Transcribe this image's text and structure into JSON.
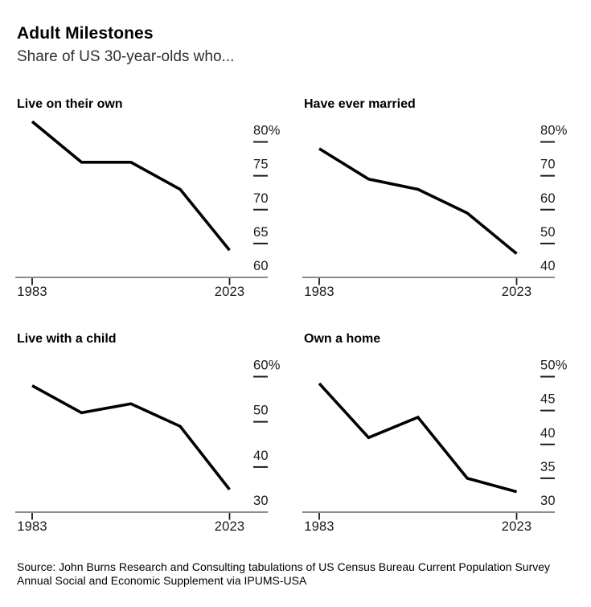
{
  "header": {
    "title": "Adult Milestones",
    "subtitle": "Share of US 30-year-olds who..."
  },
  "chart_data": [
    {
      "type": "line",
      "title": "Live on their own",
      "x": [
        1983,
        1993,
        2003,
        2013,
        2023
      ],
      "values": [
        83,
        77,
        77,
        73,
        64
      ],
      "x_tick_labels": [
        "1983",
        "2023"
      ],
      "y_ticks": [
        80,
        75,
        70,
        65
      ],
      "y_tick_labels": [
        "80%",
        "75",
        "70",
        "65"
      ],
      "y_axis_value": 60,
      "y_axis_label": "60",
      "ylim": [
        60,
        84
      ],
      "legend": "none",
      "grid": "off"
    },
    {
      "type": "line",
      "title": "Have ever married",
      "x": [
        1983,
        1993,
        2003,
        2013,
        2023
      ],
      "values": [
        78,
        69,
        66,
        59,
        47
      ],
      "x_tick_labels": [
        "1983",
        "2023"
      ],
      "y_ticks": [
        80,
        70,
        60,
        50
      ],
      "y_tick_labels": [
        "80%",
        "70",
        "60",
        "50"
      ],
      "y_axis_value": 40,
      "y_axis_label": "40",
      "ylim": [
        40,
        82
      ],
      "legend": "none",
      "grid": "off"
    },
    {
      "type": "line",
      "title": "Live with a child",
      "x": [
        1983,
        1993,
        2003,
        2013,
        2023
      ],
      "values": [
        58,
        52,
        54,
        49,
        35
      ],
      "x_tick_labels": [
        "1983",
        "2023"
      ],
      "y_ticks": [
        60,
        50,
        40
      ],
      "y_tick_labels": [
        "60%",
        "50",
        "40"
      ],
      "y_axis_value": 30,
      "y_axis_label": "30",
      "ylim": [
        30,
        61.5
      ],
      "legend": "none",
      "grid": "off"
    },
    {
      "type": "line",
      "title": "Own a home",
      "x": [
        1983,
        1993,
        2003,
        2013,
        2023
      ],
      "values": [
        49,
        41,
        44,
        35,
        33
      ],
      "x_tick_labels": [
        "1983",
        "2023"
      ],
      "y_ticks": [
        50,
        45,
        40,
        35
      ],
      "y_tick_labels": [
        "50%",
        "45",
        "40",
        "35"
      ],
      "y_axis_value": 30,
      "y_axis_label": "30",
      "ylim": [
        30,
        50.5
      ],
      "legend": "none",
      "grid": "off"
    }
  ],
  "footer": {
    "source": "Source: John Burns Research and Consulting tabulations of US Census Bureau Current Population Survey Annual Social and Economic Supplement via IPUMS-USA"
  },
  "colors": {
    "line": "#000000",
    "axis_line": "#8c8c8c",
    "tick": "#1a1a1a",
    "text": "#1a1a1a"
  }
}
